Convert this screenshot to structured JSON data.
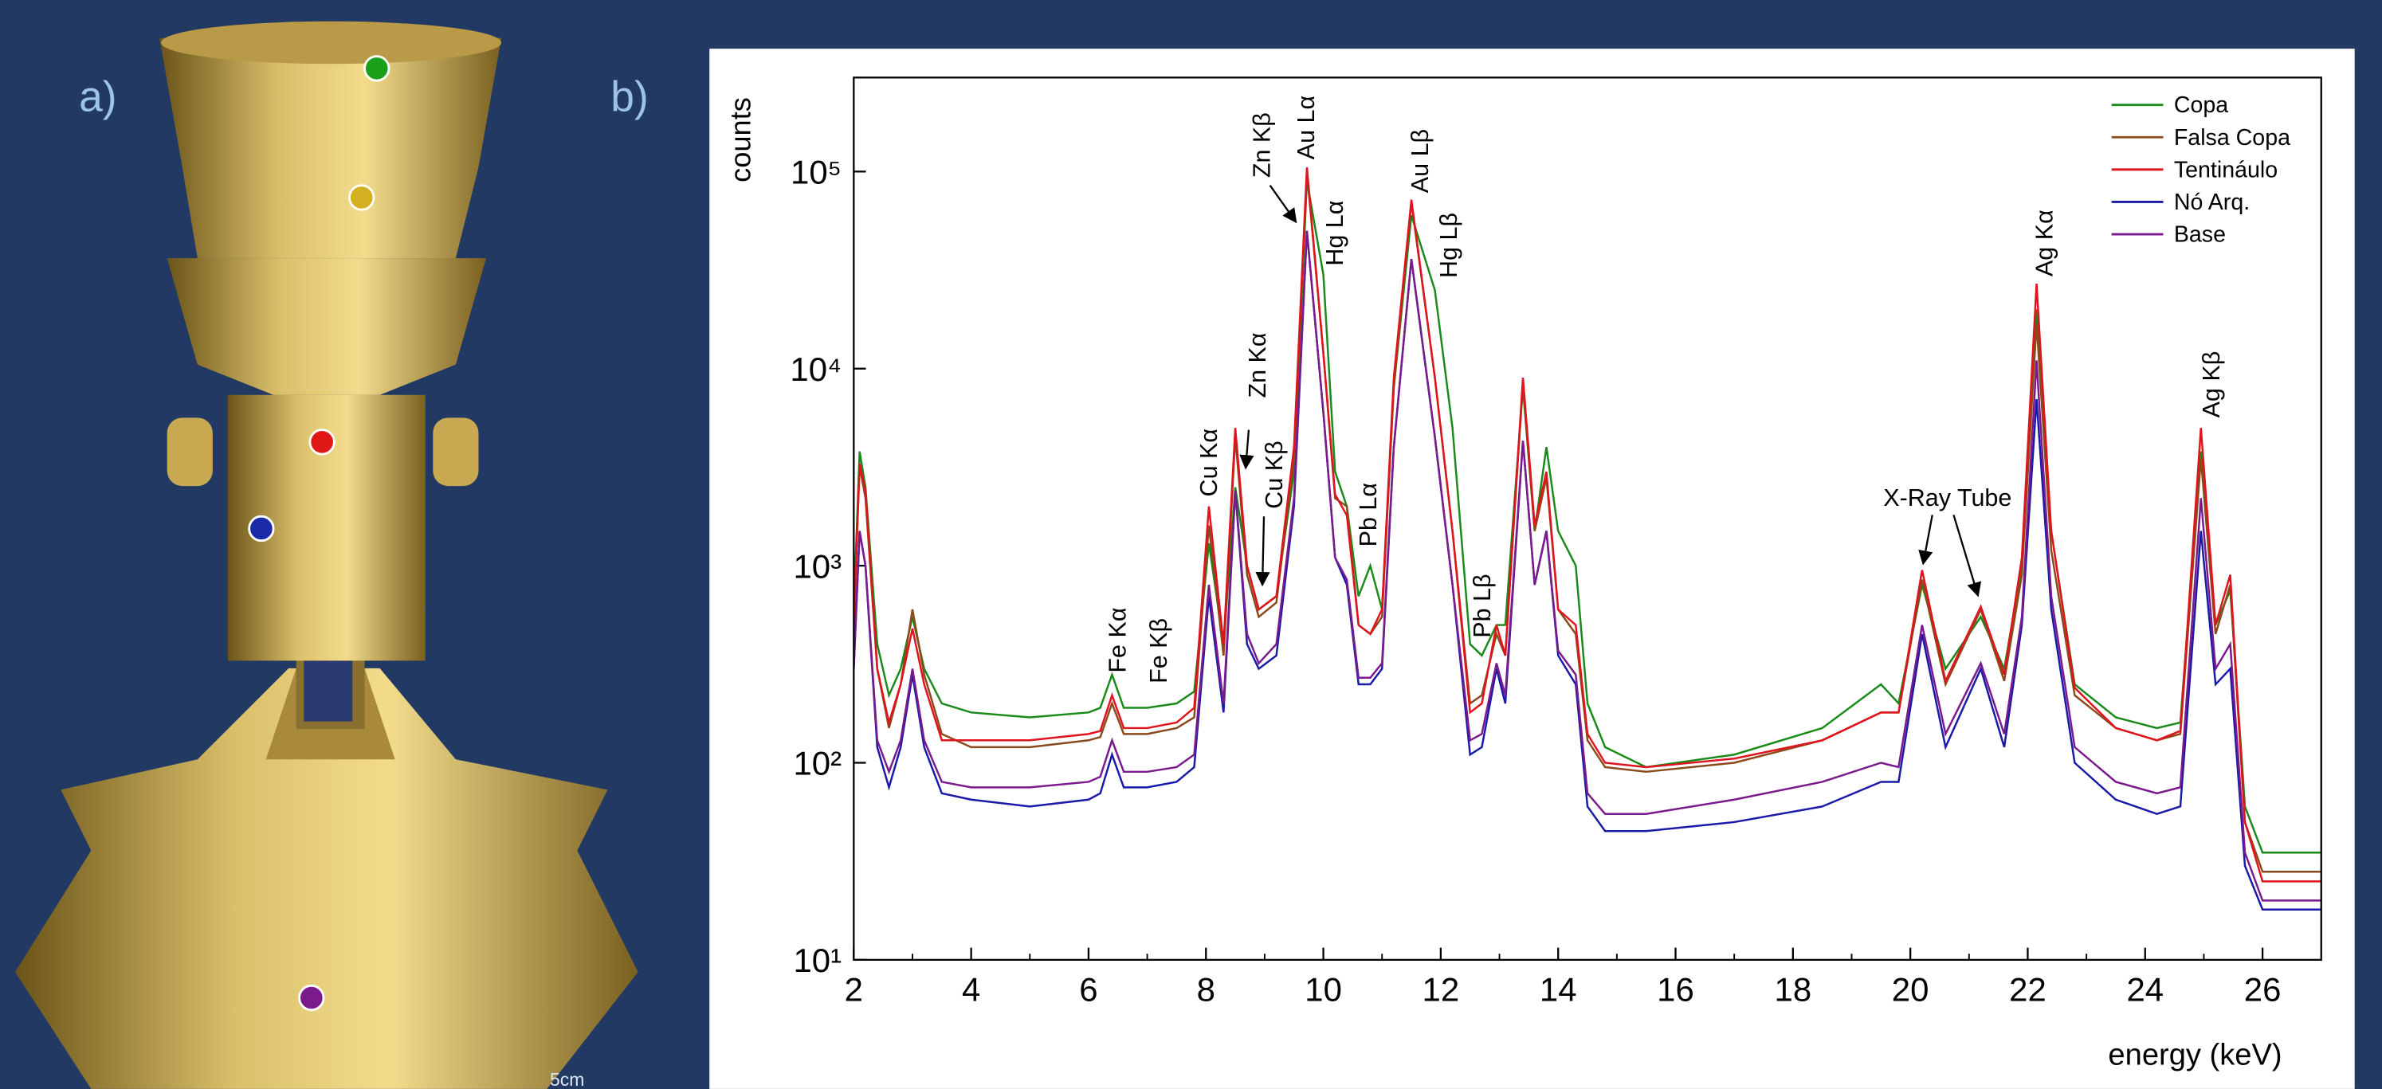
{
  "photo": {
    "panel_label": "a)",
    "scale_label": "5cm"
  },
  "chart_data": {
    "type": "line",
    "panel_label": "b)",
    "ylabel": "counts",
    "xlabel": "energy (keV)",
    "log_y": true,
    "legend": "upper right",
    "xlim": [
      2,
      27
    ],
    "ylim": [
      10,
      300000
    ],
    "xticks": [
      2,
      4,
      6,
      8,
      10,
      12,
      14,
      16,
      18,
      20,
      22,
      24,
      26
    ],
    "yticks": [
      {
        "value": 10,
        "label": "10¹"
      },
      {
        "value": 100,
        "label": "10²"
      },
      {
        "value": 1000,
        "label": "10³"
      },
      {
        "value": 10000,
        "label": "10⁴"
      },
      {
        "value": 100000,
        "label": "10⁵"
      }
    ],
    "annotations": [
      "Fe Kα",
      "Fe Kβ",
      "Cu Kα",
      "Zn Kα",
      "Cu Kβ",
      "Zn Kβ",
      "Au Lα",
      "Hg Lα",
      "Pb Lα",
      "Au Lβ",
      "Hg Lβ",
      "Pb Lβ",
      "X-Ray Tube",
      "Ag Kα",
      "Ag Kβ"
    ],
    "x": [
      2.0,
      2.1,
      2.2,
      2.4,
      2.6,
      2.8,
      3.0,
      3.2,
      3.5,
      4.0,
      5.0,
      6.0,
      6.2,
      6.4,
      6.6,
      7.0,
      7.5,
      7.8,
      8.05,
      8.3,
      8.5,
      8.7,
      8.9,
      9.2,
      9.5,
      9.72,
      10.0,
      10.2,
      10.4,
      10.6,
      10.8,
      11.0,
      11.2,
      11.5,
      11.9,
      12.2,
      12.5,
      12.7,
      12.95,
      13.1,
      13.4,
      13.6,
      13.8,
      14.0,
      14.3,
      14.5,
      14.8,
      15.5,
      17.0,
      18.5,
      19.5,
      19.8,
      20.2,
      20.6,
      21.2,
      21.6,
      21.9,
      22.15,
      22.4,
      22.8,
      23.5,
      24.2,
      24.6,
      24.95,
      25.2,
      25.45,
      25.7,
      26.0,
      26.5,
      27.0
    ],
    "series": [
      {
        "name": "Copa",
        "color": "#1a8a1a",
        "values": [
          600,
          3800,
          2500,
          400,
          220,
          300,
          550,
          300,
          200,
          180,
          170,
          180,
          190,
          280,
          190,
          190,
          200,
          230,
          1300,
          400,
          2500,
          1000,
          600,
          700,
          3000,
          90000,
          30000,
          3000,
          2000,
          700,
          1000,
          600,
          8000,
          60000,
          25000,
          5000,
          400,
          350,
          500,
          500,
          8000,
          1500,
          4000,
          1500,
          1000,
          200,
          120,
          95,
          110,
          150,
          250,
          200,
          800,
          300,
          550,
          300,
          1000,
          20000,
          1500,
          250,
          170,
          150,
          160,
          3800,
          500,
          750,
          60,
          35,
          35,
          35
        ]
      },
      {
        "name": "Falsa Copa",
        "color": "#8b4a1c",
        "values": [
          500,
          3200,
          2200,
          300,
          150,
          250,
          600,
          280,
          140,
          120,
          120,
          130,
          135,
          200,
          140,
          140,
          150,
          170,
          1600,
          350,
          4500,
          900,
          550,
          650,
          3500,
          100000,
          12000,
          2200,
          2000,
          500,
          450,
          550,
          8000,
          70000,
          9000,
          1500,
          200,
          220,
          450,
          350,
          8500,
          1500,
          2800,
          600,
          450,
          130,
          95,
          90,
          100,
          130,
          180,
          180,
          850,
          250,
          600,
          260,
          900,
          17000,
          1200,
          220,
          150,
          130,
          140,
          3500,
          450,
          800,
          50,
          28,
          28,
          28
        ]
      },
      {
        "name": "Tentináulo",
        "color": "#e0141e",
        "values": [
          500,
          3300,
          2400,
          300,
          160,
          250,
          480,
          250,
          130,
          130,
          130,
          140,
          145,
          220,
          150,
          150,
          160,
          190,
          2000,
          400,
          5000,
          1000,
          600,
          700,
          4000,
          105000,
          12000,
          2300,
          1800,
          500,
          450,
          600,
          9000,
          72000,
          9000,
          1500,
          180,
          200,
          500,
          350,
          9000,
          1600,
          3000,
          600,
          500,
          140,
          100,
          95,
          105,
          130,
          180,
          180,
          950,
          260,
          620,
          280,
          1100,
          27000,
          1500,
          240,
          150,
          130,
          145,
          5000,
          500,
          900,
          50,
          25,
          25,
          25
        ]
      },
      {
        "name": "Nó Arq.",
        "color": "#1a1aa8",
        "values": [
          300,
          1500,
          1000,
          120,
          75,
          120,
          280,
          120,
          70,
          65,
          60,
          65,
          70,
          110,
          75,
          75,
          80,
          95,
          700,
          180,
          2400,
          400,
          300,
          350,
          2000,
          50000,
          6000,
          1100,
          800,
          250,
          250,
          300,
          4000,
          36000,
          4500,
          800,
          110,
          120,
          300,
          200,
          4300,
          800,
          1500,
          350,
          250,
          60,
          45,
          45,
          50,
          60,
          80,
          80,
          450,
          120,
          300,
          120,
          500,
          7000,
          600,
          100,
          65,
          55,
          60,
          1500,
          250,
          300,
          30,
          18,
          18,
          18
        ]
      },
      {
        "name": "Base",
        "color": "#7a1a8c",
        "values": [
          300,
          1500,
          1000,
          130,
          90,
          130,
          300,
          130,
          80,
          75,
          75,
          80,
          85,
          130,
          90,
          90,
          95,
          110,
          800,
          200,
          2400,
          450,
          320,
          400,
          2200,
          50000,
          6000,
          1100,
          850,
          270,
          270,
          320,
          4000,
          36000,
          4500,
          800,
          130,
          140,
          320,
          220,
          4300,
          800,
          1500,
          370,
          280,
          70,
          55,
          55,
          65,
          80,
          100,
          95,
          500,
          140,
          320,
          140,
          550,
          11000,
          700,
          120,
          80,
          70,
          75,
          2200,
          300,
          400,
          35,
          20,
          20,
          20
        ]
      }
    ]
  }
}
